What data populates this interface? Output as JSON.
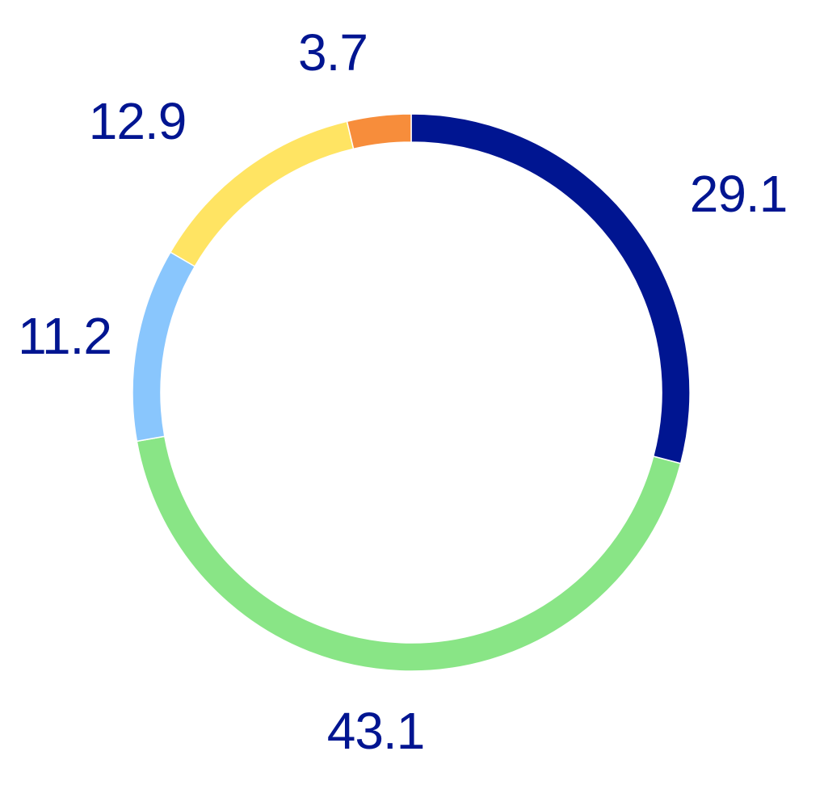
{
  "chart_data": {
    "type": "pie",
    "style": "donut-ring",
    "title": "",
    "slices": [
      {
        "label": "29.1",
        "value": 29.1,
        "color": "#001591"
      },
      {
        "label": "43.1",
        "value": 43.1,
        "color": "#89e586"
      },
      {
        "label": "11.2",
        "value": 11.2,
        "color": "#89c6fd"
      },
      {
        "label": "12.9",
        "value": 12.9,
        "color": "#ffe463"
      },
      {
        "label": "3.7",
        "value": 3.7,
        "color": "#f78d3b"
      }
    ],
    "label_color": "#001591",
    "start_angle": "12 o'clock",
    "direction": "clockwise",
    "legend": "none"
  }
}
